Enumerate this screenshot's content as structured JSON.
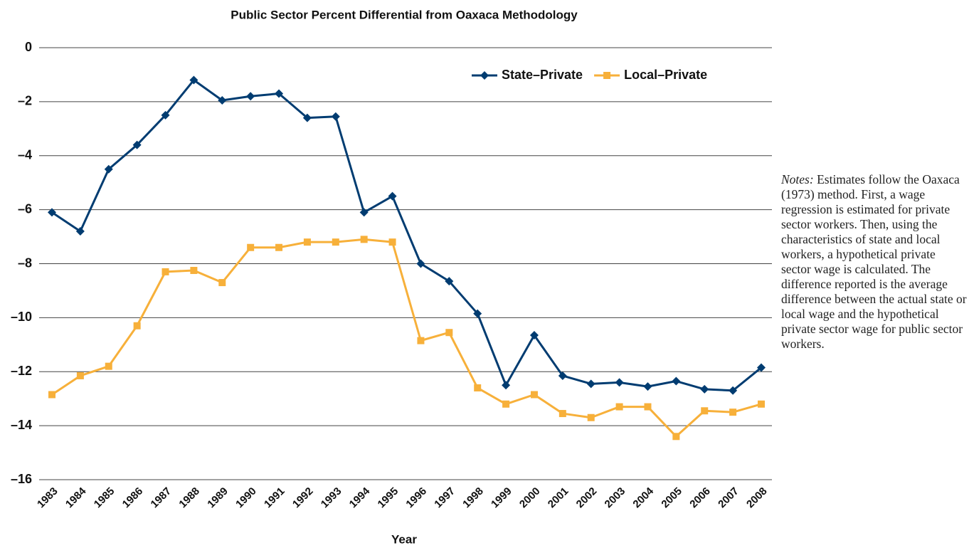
{
  "chart_data": {
    "type": "line",
    "title": "Public Sector Percent Differential from Oaxaca Methodology",
    "x_label": "Year",
    "categories": [
      "1983",
      "1984",
      "1985",
      "1986",
      "1987",
      "1988",
      "1989",
      "1990",
      "1991",
      "1992",
      "1993",
      "1994",
      "1995",
      "1996",
      "1997",
      "1998",
      "1999",
      "2000",
      "2001",
      "2002",
      "2003",
      "2004",
      "2005",
      "2006",
      "2007",
      "2008"
    ],
    "series": [
      {
        "name": "State–Private",
        "color": "#003c71",
        "marker": "diamond",
        "values": [
          -6.1,
          -6.8,
          -4.5,
          -3.6,
          -2.5,
          -1.2,
          -1.95,
          -1.8,
          -1.7,
          -2.6,
          -2.55,
          -6.1,
          -5.5,
          -8.0,
          -8.65,
          -9.85,
          -12.5,
          -10.65,
          -12.15,
          -12.45,
          -12.4,
          -12.55,
          -12.35,
          -12.65,
          -12.7,
          -11.85
        ]
      },
      {
        "name": "Local–Private",
        "color": "#f7b03a",
        "marker": "square",
        "values": [
          -12.85,
          -12.15,
          -11.8,
          -10.3,
          -8.3,
          -8.25,
          -8.7,
          -7.4,
          -7.4,
          -7.2,
          -7.2,
          -7.1,
          -7.2,
          -10.85,
          -10.55,
          -12.6,
          -13.2,
          -12.85,
          -13.55,
          -13.7,
          -13.3,
          -13.3,
          -14.4,
          -13.45,
          -13.5,
          -13.2
        ]
      }
    ],
    "ylim": [
      -16,
      0
    ],
    "yticks": [
      0,
      {
        "value": -2,
        "label": "–2"
      },
      {
        "value": -4,
        "label": "–4"
      },
      {
        "value": -6,
        "label": "–6"
      },
      {
        "value": -8,
        "label": "–8"
      },
      {
        "value": -10,
        "label": "–10"
      },
      {
        "value": -12,
        "label": "–12"
      },
      {
        "value": -14,
        "label": "–14"
      },
      {
        "value": -16,
        "label": "–16"
      }
    ],
    "grid": true,
    "legend": "top-right",
    "notes_label": "Notes:",
    "notes": "Estimates follow the Oaxaca (1973) method. First, a wage regression is estimated for private sector workers. Then, using the characteristics of state and local workers, a hypothetical private sector wage is calculated. The difference reported is the average difference between the actual state or local wage and the hypothetical private sector wage for public sector workers."
  }
}
